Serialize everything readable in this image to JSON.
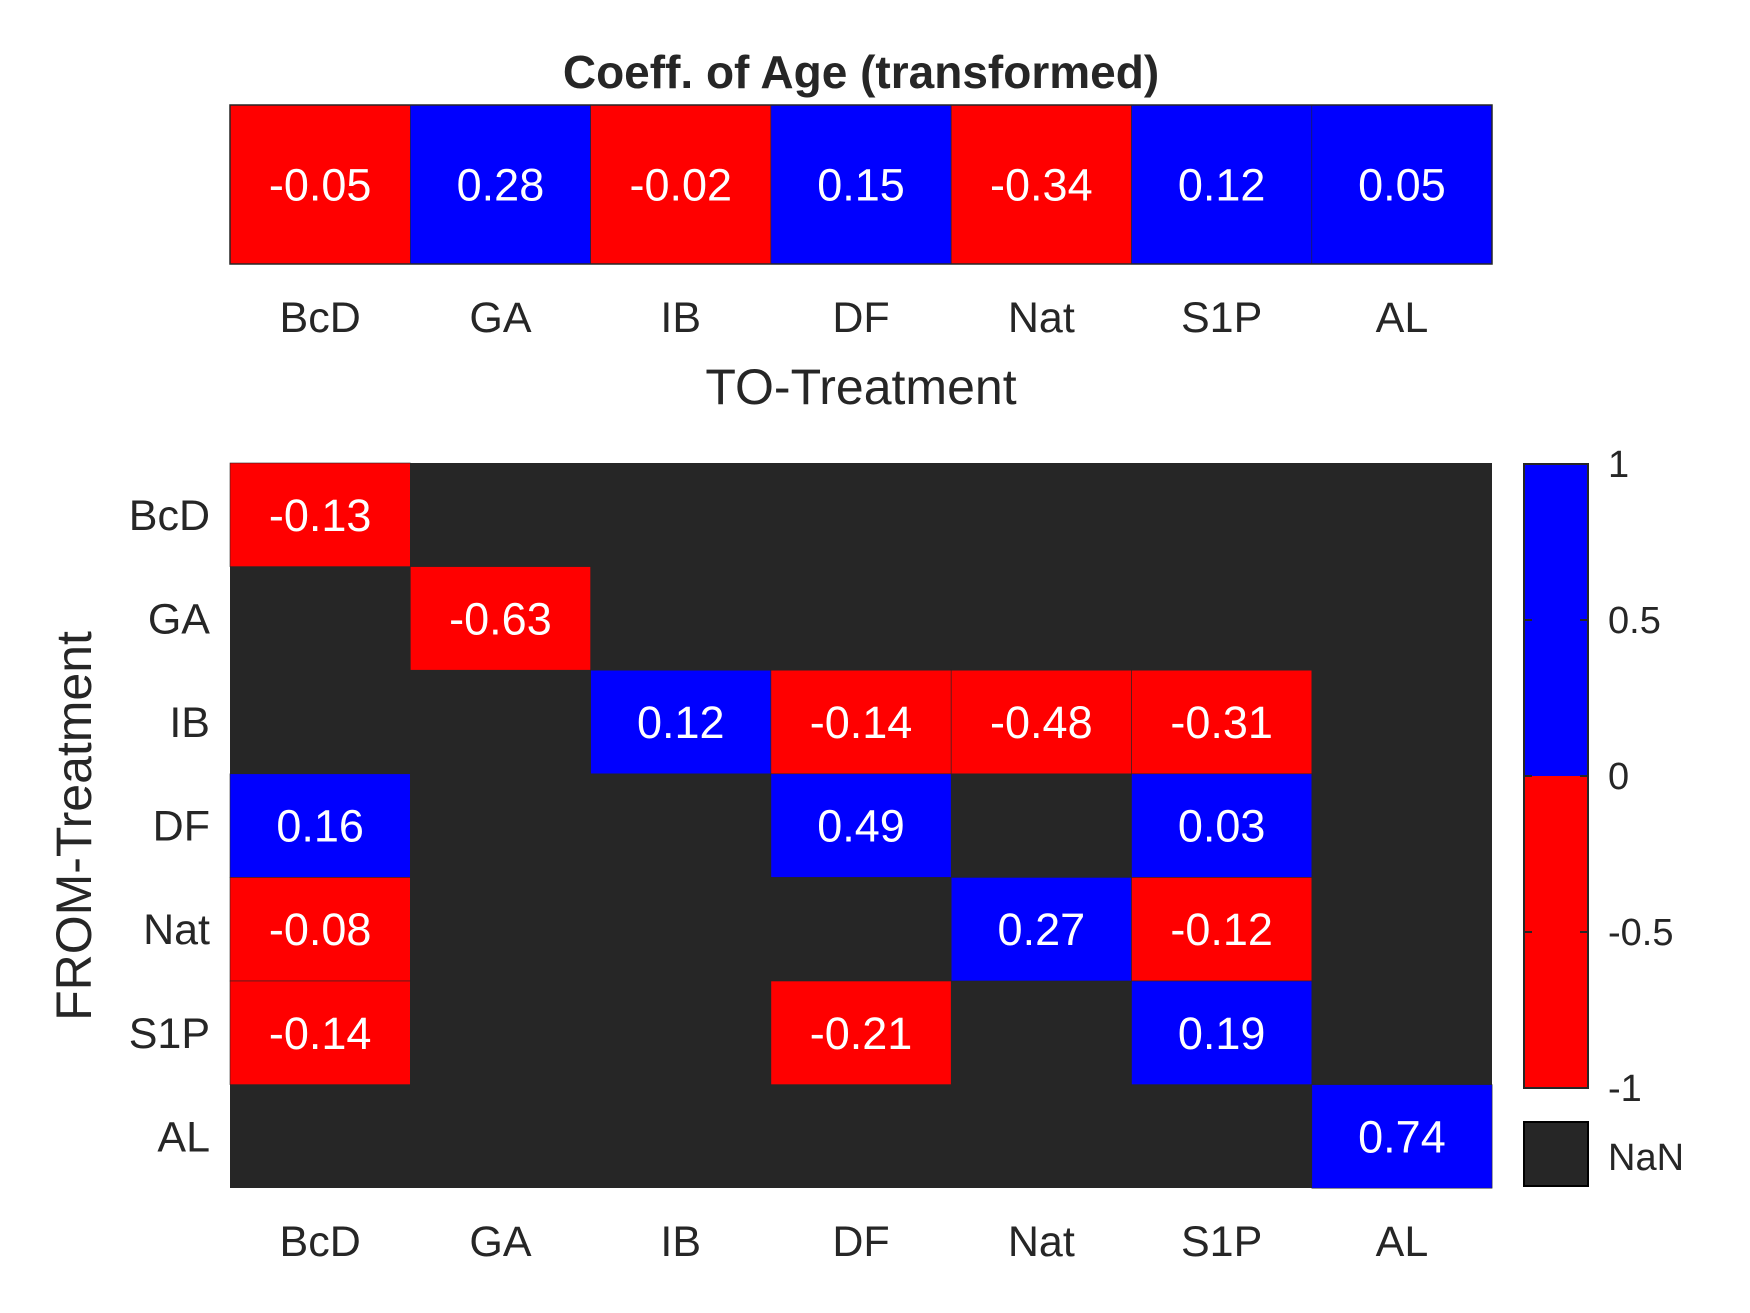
{
  "colors": {
    "negative": "#ff0000",
    "positive": "#0000ff",
    "nan": "#262626",
    "text": "#262626",
    "cell_text": "#ffffff"
  },
  "chart_data": [
    {
      "type": "heatmap",
      "title": "Coeff. of Age (transformed)",
      "xlabel": "TO-Treatment",
      "ylabel": "",
      "x_categories": [
        "BcD",
        "GA",
        "IB",
        "DF",
        "Nat",
        "S1P",
        "AL"
      ],
      "values": [
        [
          -0.05,
          0.28,
          -0.02,
          0.15,
          -0.34,
          0.12,
          0.05
        ]
      ],
      "color_scale": "sign (red < 0, blue > 0)"
    },
    {
      "type": "heatmap",
      "title": "",
      "xlabel": "",
      "ylabel": "FROM-Treatment",
      "x_categories": [
        "BcD",
        "GA",
        "IB",
        "DF",
        "Nat",
        "S1P",
        "AL"
      ],
      "y_categories": [
        "BcD",
        "GA",
        "IB",
        "DF",
        "Nat",
        "S1P",
        "AL"
      ],
      "values": [
        [
          -0.13,
          null,
          null,
          null,
          null,
          null,
          null
        ],
        [
          null,
          -0.63,
          null,
          null,
          null,
          null,
          null
        ],
        [
          null,
          null,
          0.12,
          -0.14,
          -0.48,
          -0.31,
          null
        ],
        [
          0.16,
          null,
          null,
          0.49,
          null,
          0.03,
          null
        ],
        [
          -0.08,
          null,
          null,
          null,
          0.27,
          -0.12,
          null
        ],
        [
          -0.14,
          null,
          null,
          -0.21,
          null,
          0.19,
          null
        ],
        [
          null,
          null,
          null,
          null,
          null,
          null,
          0.74
        ]
      ],
      "colorbar": {
        "range": [
          -1,
          1
        ],
        "ticks": [
          "1",
          "0.5",
          "0",
          "-0.5",
          "-1"
        ],
        "tick_values": [
          1,
          0.5,
          0,
          -0.5,
          -1
        ],
        "nan_label": "NaN"
      }
    }
  ]
}
